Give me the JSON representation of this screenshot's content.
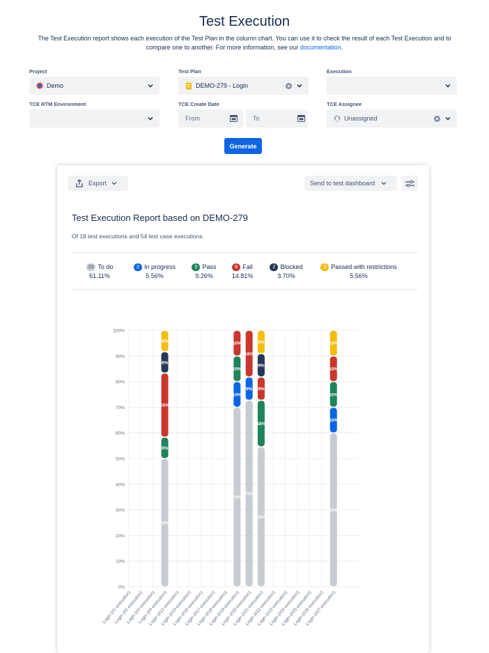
{
  "header": {
    "title": "Test Execution",
    "description": "The Test Execution report shows each execution of the Test Plan in the column chart. You can use it to check the result of each Test Execution and to compare one to another. For more information, see our ",
    "link": "documentation",
    "end": "."
  },
  "filters": {
    "project": {
      "label": "Project",
      "value": "Demo"
    },
    "plan": {
      "label": "Test Plan",
      "value": "DEMO-279 - Login"
    },
    "execution": {
      "label": "Execution"
    },
    "environment": {
      "label": "TCE RTM Environment"
    },
    "date": {
      "label": "TCE Create Date",
      "from": "From",
      "to": "To"
    },
    "assignee": {
      "label": "TCE Assignee",
      "value": "Unassigned"
    },
    "generate": "Generate"
  },
  "report": {
    "export": "Export",
    "send": "Send to test dashboard",
    "title": "Test Execution Report based on DEMO-279",
    "subtitle": "Of 18 test executions and 54 test case executions."
  },
  "chart_data": {
    "type": "stacked-bar",
    "categories": [
      "Login (#1 execution)",
      "Login (#2 execution)",
      "Login (#3 execution)",
      "Login (#4 execution)",
      "Login (#13 execution)",
      "Login (#15 execution)",
      "Login (#16 execution)",
      "Login (#17 execution)",
      "Login (#18 execution)",
      "Login (#19 execution)",
      "Login (#20 execution)",
      "Login (#21 execution)",
      "Login (#22 execution)",
      "Login (#23 execution)",
      "Login (#24 execution)",
      "Login (#25 execution)",
      "Login (#26 execution)",
      "Login (#27 execution)"
    ],
    "series": [
      {
        "name": "To do",
        "color": "#c7cbd2",
        "badge_text": "#44546f",
        "count": 33,
        "percent": "61.11%",
        "values": [
          null,
          null,
          null,
          50,
          null,
          null,
          null,
          null,
          null,
          70,
          72.73,
          54.55,
          null,
          null,
          null,
          null,
          null,
          60
        ],
        "value_labels": [
          null,
          null,
          null,
          "50%",
          null,
          null,
          null,
          null,
          null,
          "70%",
          "73%",
          "55%",
          null,
          null,
          null,
          null,
          null,
          "60%"
        ]
      },
      {
        "name": "In progress",
        "color": "#0c66e4",
        "count": 3,
        "percent": "5.56%",
        "values": [
          null,
          null,
          null,
          null,
          null,
          null,
          null,
          null,
          null,
          10,
          9.09,
          null,
          null,
          null,
          null,
          null,
          null,
          10
        ],
        "value_labels": [
          null,
          null,
          null,
          null,
          null,
          null,
          null,
          null,
          null,
          "10%",
          "9%",
          null,
          null,
          null,
          null,
          null,
          null,
          "10%"
        ]
      },
      {
        "name": "Pass",
        "color": "#1f845a",
        "count": 5,
        "percent": "9.26%",
        "values": [
          null,
          null,
          null,
          8.33,
          null,
          null,
          null,
          null,
          null,
          10,
          null,
          18.18,
          null,
          null,
          null,
          null,
          null,
          10
        ],
        "value_labels": [
          null,
          null,
          null,
          "8%",
          null,
          null,
          null,
          null,
          null,
          "10%",
          null,
          "18%",
          null,
          null,
          null,
          null,
          null,
          "10%"
        ]
      },
      {
        "name": "Fail",
        "color": "#c9372c",
        "count": 8,
        "percent": "14.81%",
        "values": [
          null,
          null,
          null,
          25,
          null,
          null,
          null,
          null,
          null,
          10,
          18.18,
          9.09,
          null,
          null,
          null,
          null,
          null,
          10
        ],
        "value_labels": [
          null,
          null,
          null,
          "25%",
          null,
          null,
          null,
          null,
          null,
          "10%",
          "18%",
          "9%",
          null,
          null,
          null,
          null,
          null,
          "10%"
        ]
      },
      {
        "name": "Blocked",
        "color": "#253858",
        "count": 2,
        "percent": "3.70%",
        "values": [
          null,
          null,
          null,
          8.33,
          null,
          null,
          null,
          null,
          null,
          null,
          null,
          9.09,
          null,
          null,
          null,
          null,
          null,
          null
        ],
        "value_labels": [
          null,
          null,
          null,
          "8%",
          null,
          null,
          null,
          null,
          null,
          null,
          null,
          "9%",
          null,
          null,
          null,
          null,
          null,
          null
        ]
      },
      {
        "name": "Passed with restrictions",
        "color": "#f5bd0f",
        "count": 3,
        "percent": "5.56%",
        "values": [
          null,
          null,
          null,
          8.33,
          null,
          null,
          null,
          null,
          null,
          null,
          null,
          9.09,
          null,
          null,
          null,
          null,
          null,
          10
        ],
        "value_labels": [
          null,
          null,
          null,
          "8%",
          null,
          null,
          null,
          null,
          null,
          null,
          null,
          "9%",
          null,
          null,
          null,
          null,
          null,
          "10%"
        ]
      }
    ],
    "ylim": [
      0,
      100
    ],
    "yticks": [
      {
        "value": 0,
        "label": "0%"
      },
      {
        "value": 10,
        "label": "10%"
      },
      {
        "value": 20,
        "label": "20%"
      },
      {
        "value": 30,
        "label": "30%"
      },
      {
        "value": 40,
        "label": "40%"
      },
      {
        "value": 50,
        "label": "50%"
      },
      {
        "value": 60,
        "label": "60%"
      },
      {
        "value": 70,
        "label": "70%"
      },
      {
        "value": 80,
        "label": "80%"
      },
      {
        "value": 90,
        "label": "90%"
      },
      {
        "value": 100,
        "label": "100%"
      }
    ],
    "grid": true
  }
}
